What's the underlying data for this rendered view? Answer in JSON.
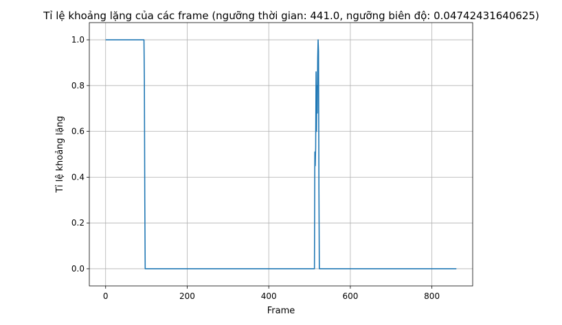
{
  "chart_data": {
    "type": "line",
    "title": "Tỉ lệ khoảng lặng của các frame (ngưỡng thời gian: 441.0, ngưỡng biên độ: 0.04742431640625)",
    "xlabel": "Frame",
    "ylabel": "Tỉ lệ khoảng lặng",
    "xlim": [
      -40,
      900
    ],
    "ylim": [
      -0.075,
      1.075
    ],
    "xticks": [
      0,
      200,
      400,
      600,
      800
    ],
    "yticks": [
      0.0,
      0.2,
      0.4,
      0.6,
      0.8,
      1.0
    ],
    "ytick_labels": [
      "0.0",
      "0.2",
      "0.4",
      "0.6",
      "0.8",
      "1.0"
    ],
    "grid": true,
    "legend": "none",
    "line_color": "#1f77b4",
    "series": [
      {
        "x": [
          0,
          94,
          95,
          96,
          97,
          300,
          512,
          513,
          514,
          515,
          516,
          517,
          518,
          519,
          520,
          521,
          522,
          523,
          524,
          525,
          860
        ],
        "y": [
          1.0,
          1.0,
          0.82,
          0.3,
          0.0,
          0.0,
          0.0,
          0.51,
          0.45,
          0.53,
          0.86,
          0.6,
          0.8,
          0.68,
          0.92,
          1.0,
          0.95,
          0.35,
          0.0,
          0.0,
          0.0
        ]
      }
    ]
  }
}
